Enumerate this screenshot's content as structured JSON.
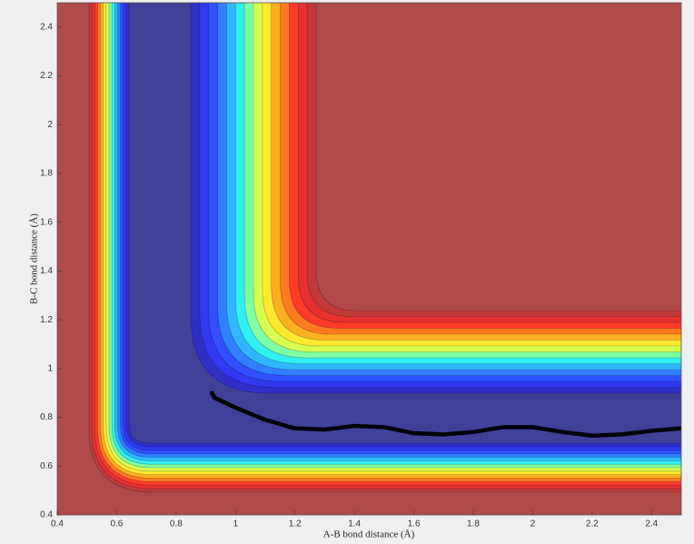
{
  "chart_data": {
    "type": "line",
    "x_label": "A-B bond distance (Å)",
    "y_label": "B-C bond distance (Å)",
    "xlim": [
      0.4,
      2.5
    ],
    "ylim": [
      0.4,
      2.5
    ],
    "xticks": [
      0.4,
      0.6,
      0.8,
      1,
      1.2,
      1.4,
      1.6,
      1.8,
      2,
      2.2,
      2.4
    ],
    "yticks": [
      0.4,
      0.6,
      0.8,
      1,
      1.2,
      1.4,
      1.6,
      1.8,
      2,
      2.2,
      2.4
    ],
    "series": [
      {
        "color": "#000000",
        "x": [
          0.92,
          0.93,
          1.0,
          1.1,
          1.2,
          1.3,
          1.4,
          1.5,
          1.6,
          1.7,
          1.8,
          1.9,
          2.0,
          2.1,
          2.2,
          2.3,
          2.4,
          2.5
        ],
        "values": [
          0.9,
          0.88,
          0.84,
          0.79,
          0.755,
          0.75,
          0.765,
          0.76,
          0.735,
          0.73,
          0.74,
          0.76,
          0.76,
          0.74,
          0.725,
          0.73,
          0.745,
          0.755
        ]
      }
    ]
  }
}
